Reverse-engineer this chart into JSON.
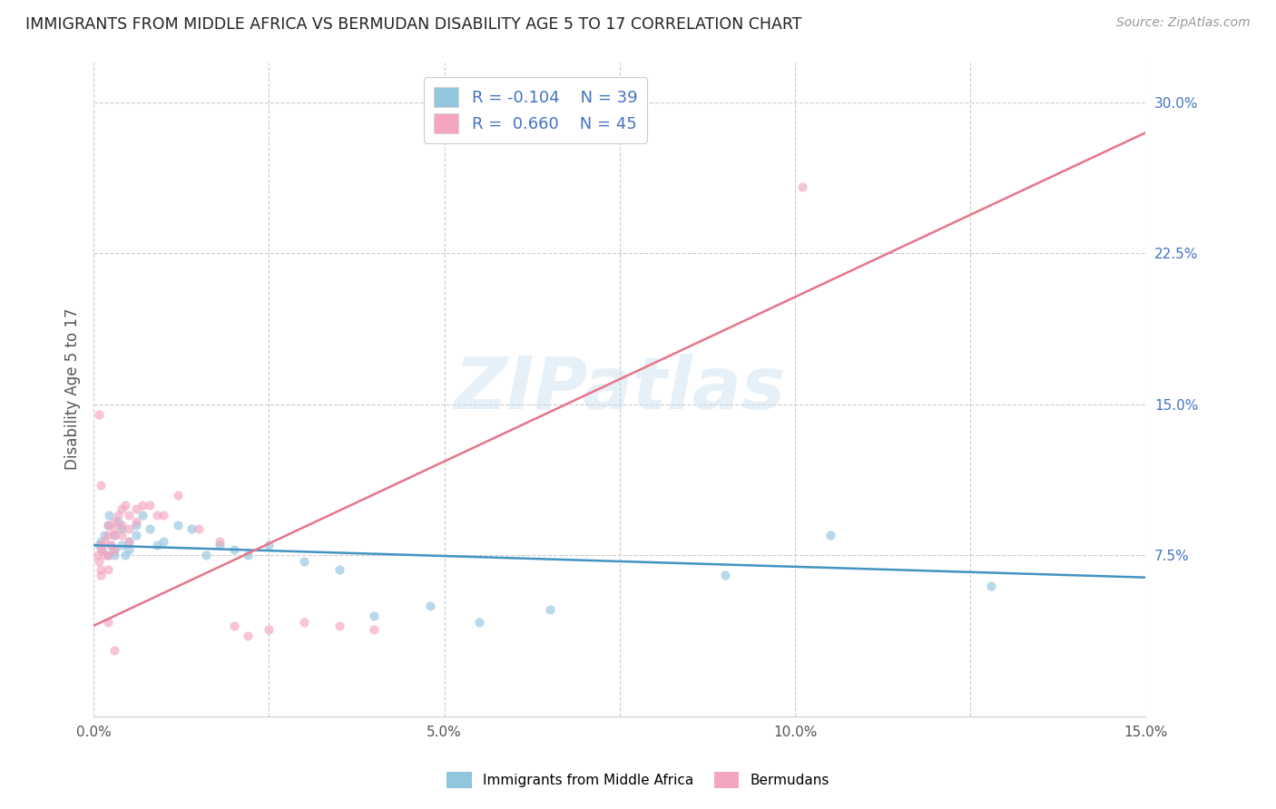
{
  "title": "IMMIGRANTS FROM MIDDLE AFRICA VS BERMUDAN DISABILITY AGE 5 TO 17 CORRELATION CHART",
  "source": "Source: ZipAtlas.com",
  "ylabel": "Disability Age 5 to 17",
  "xlim": [
    0.0,
    0.15
  ],
  "ylim": [
    -0.005,
    0.32
  ],
  "xtick_positions": [
    0.0,
    0.025,
    0.05,
    0.075,
    0.1,
    0.125,
    0.15
  ],
  "xtick_labels": [
    "0.0%",
    "",
    "5.0%",
    "",
    "10.0%",
    "",
    "15.0%"
  ],
  "yticks_right": [
    0.075,
    0.15,
    0.225,
    0.3
  ],
  "ytick_labels_right": [
    "7.5%",
    "15.0%",
    "22.5%",
    "30.0%"
  ],
  "watermark": "ZIPatlas",
  "blue_color": "#92c5de",
  "pink_color": "#f4a6c0",
  "blue_line_color": "#4393c3",
  "pink_line_color": "#e8748a",
  "scatter_alpha": 0.65,
  "scatter_size": 55,
  "blue_x": [
    0.0008,
    0.001,
    0.0012,
    0.0015,
    0.002,
    0.002,
    0.0022,
    0.0025,
    0.003,
    0.003,
    0.003,
    0.0035,
    0.004,
    0.004,
    0.0045,
    0.005,
    0.005,
    0.006,
    0.006,
    0.007,
    0.008,
    0.009,
    0.01,
    0.012,
    0.014,
    0.016,
    0.018,
    0.02,
    0.022,
    0.025,
    0.03,
    0.035,
    0.04,
    0.048,
    0.055,
    0.065,
    0.09,
    0.105,
    0.128
  ],
  "blue_y": [
    0.08,
    0.082,
    0.078,
    0.085,
    0.09,
    0.075,
    0.095,
    0.08,
    0.085,
    0.075,
    0.078,
    0.092,
    0.088,
    0.08,
    0.075,
    0.082,
    0.078,
    0.09,
    0.085,
    0.095,
    0.088,
    0.08,
    0.082,
    0.09,
    0.088,
    0.075,
    0.08,
    0.078,
    0.075,
    0.08,
    0.072,
    0.068,
    0.045,
    0.05,
    0.042,
    0.048,
    0.065,
    0.085,
    0.06
  ],
  "pink_x": [
    0.0005,
    0.0008,
    0.001,
    0.001,
    0.001,
    0.0012,
    0.0015,
    0.0015,
    0.002,
    0.002,
    0.002,
    0.002,
    0.0025,
    0.003,
    0.003,
    0.003,
    0.003,
    0.0035,
    0.004,
    0.004,
    0.004,
    0.0045,
    0.005,
    0.005,
    0.005,
    0.006,
    0.006,
    0.007,
    0.008,
    0.009,
    0.01,
    0.012,
    0.015,
    0.018,
    0.02,
    0.022,
    0.025,
    0.03,
    0.035,
    0.04,
    0.0008,
    0.001,
    0.002,
    0.003,
    0.101
  ],
  "pink_y": [
    0.075,
    0.072,
    0.08,
    0.068,
    0.065,
    0.078,
    0.082,
    0.075,
    0.085,
    0.09,
    0.075,
    0.068,
    0.08,
    0.085,
    0.078,
    0.092,
    0.088,
    0.095,
    0.098,
    0.09,
    0.085,
    0.1,
    0.095,
    0.088,
    0.082,
    0.098,
    0.092,
    0.1,
    0.1,
    0.095,
    0.095,
    0.105,
    0.088,
    0.082,
    0.04,
    0.035,
    0.038,
    0.042,
    0.04,
    0.038,
    0.145,
    0.11,
    0.042,
    0.028,
    0.258
  ],
  "blue_line_x": [
    0.0,
    0.15
  ],
  "blue_line_y": [
    0.08,
    0.064
  ],
  "pink_line_x": [
    0.0,
    0.15
  ],
  "pink_line_y": [
    0.04,
    0.285
  ]
}
